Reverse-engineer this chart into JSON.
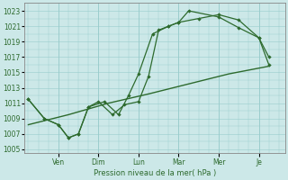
{
  "xlabel": "Pression niveau de la mer( hPa )",
  "ylim": [
    1004.5,
    1024
  ],
  "yticks": [
    1005,
    1007,
    1009,
    1011,
    1013,
    1015,
    1017,
    1019,
    1021,
    1023
  ],
  "x_day_labels": [
    "Ven",
    "Dim",
    "Lun",
    "Mar",
    "Mer",
    "Je"
  ],
  "x_day_positions": [
    1.5,
    3.5,
    5.5,
    7.5,
    9.5,
    11.5
  ],
  "x_vlines": [
    1.5,
    3.5,
    5.5,
    7.5,
    9.5,
    11.5
  ],
  "xlim": [
    -0.2,
    12.8
  ],
  "background_color": "#cce8e8",
  "grid_color": "#99cccc",
  "line_color": "#2d6a2d",
  "line1": {
    "x": [
      0.0,
      0.8,
      1.5,
      2.0,
      2.5,
      3.0,
      3.5,
      4.2,
      4.8,
      5.5,
      6.0,
      6.5,
      7.0,
      7.5,
      8.0,
      9.5,
      10.5,
      11.5,
      12.0
    ],
    "y": [
      1011.5,
      1009.0,
      1008.2,
      1006.5,
      1007.0,
      1010.5,
      1011.2,
      1009.5,
      1010.8,
      1011.2,
      1014.5,
      1020.5,
      1021.0,
      1021.5,
      1023.0,
      1022.2,
      1020.8,
      1019.5,
      1017.0
    ]
  },
  "line2": {
    "x": [
      0.0,
      0.8,
      1.5,
      2.0,
      2.5,
      3.0,
      3.8,
      4.5,
      5.0,
      5.5,
      6.2,
      7.0,
      7.5,
      8.5,
      9.5,
      10.5,
      11.5,
      12.0
    ],
    "y": [
      1011.5,
      1009.0,
      1008.2,
      1006.5,
      1007.0,
      1010.5,
      1011.2,
      1009.5,
      1012.0,
      1014.8,
      1020.0,
      1021.0,
      1021.5,
      1022.0,
      1022.5,
      1021.8,
      1019.5,
      1016.0
    ]
  },
  "line3": {
    "x": [
      0.0,
      2.0,
      4.0,
      6.0,
      8.0,
      10.0,
      12.0
    ],
    "y": [
      1008.2,
      1009.5,
      1011.0,
      1012.2,
      1013.5,
      1014.8,
      1015.8
    ]
  }
}
